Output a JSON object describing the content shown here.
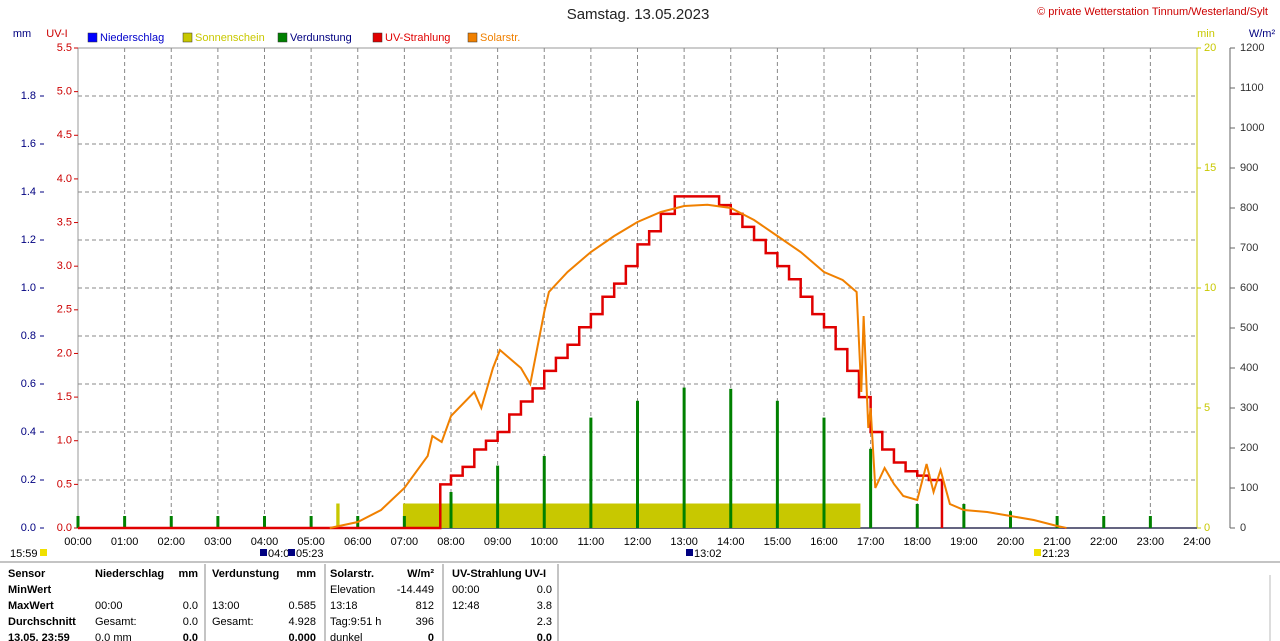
{
  "chart_data": {
    "type": "line",
    "title": "Samstag. 13.05.2023",
    "source": "© private Wetterstation Tinnum/Westerland/Sylt",
    "ylabel": "mm",
    "y2label": "UV-I",
    "y3label": "min",
    "y4label": "W/m²",
    "xlim": [
      0,
      24
    ],
    "xticks": [
      {
        "value": 0,
        "label": "00:00"
      },
      {
        "value": 1,
        "label": "01:00"
      },
      {
        "value": 2,
        "label": "02:00"
      },
      {
        "value": 3,
        "label": "03:00"
      },
      {
        "value": 4,
        "label": "04:00"
      },
      {
        "value": 5,
        "label": "05:00"
      },
      {
        "value": 6,
        "label": "06:00"
      },
      {
        "value": 7,
        "label": "07:00"
      },
      {
        "value": 8,
        "label": "08:00"
      },
      {
        "value": 9,
        "label": "09:00"
      },
      {
        "value": 10,
        "label": "10:00"
      },
      {
        "value": 11,
        "label": "11:00"
      },
      {
        "value": 12,
        "label": "12:00"
      },
      {
        "value": 13,
        "label": "13:00"
      },
      {
        "value": 14,
        "label": "14:00"
      },
      {
        "value": 15,
        "label": "15:00"
      },
      {
        "value": 16,
        "label": "16:00"
      },
      {
        "value": 17,
        "label": "17:00"
      },
      {
        "value": 18,
        "label": "18:00"
      },
      {
        "value": 19,
        "label": "19:00"
      },
      {
        "value": 20,
        "label": "20:00"
      },
      {
        "value": 21,
        "label": "21:00"
      },
      {
        "value": 22,
        "label": "22:00"
      },
      {
        "value": 23,
        "label": "23:00"
      },
      {
        "value": 24,
        "label": "24:00"
      }
    ],
    "ylim": [
      0,
      2
    ],
    "yticks": [
      {
        "value": 0,
        "label": "0.0"
      },
      0.2,
      0.4,
      0.6,
      0.8,
      {
        "value": 1,
        "label": "1.0"
      },
      1.2,
      1.4,
      1.6,
      1.8
    ],
    "y2lim": [
      0,
      5.5
    ],
    "y2ticks": [
      {
        "value": 0,
        "label": "0.0"
      },
      0.5,
      {
        "value": 1,
        "label": "1.0"
      },
      1.5,
      {
        "value": 2,
        "label": "2.0"
      },
      2.5,
      {
        "value": 3,
        "label": "3.0"
      },
      3.5,
      {
        "value": 4,
        "label": "4.0"
      },
      4.5,
      {
        "value": 5,
        "label": "5.0"
      },
      5.5
    ],
    "y3lim": [
      0,
      20
    ],
    "y3ticks": [
      0,
      5,
      10,
      15,
      20
    ],
    "y4lim": [
      0,
      1200
    ],
    "y4ticks": [
      0,
      100,
      200,
      300,
      400,
      500,
      600,
      700,
      800,
      900,
      1000,
      1100,
      1200
    ],
    "grid": true,
    "series": [
      {
        "name": "Niederschlag",
        "color": "#0000ff",
        "text_color": "#0000cc",
        "axis": "y",
        "style": "line",
        "x": [
          0,
          24
        ],
        "values": [
          0,
          0
        ]
      },
      {
        "name": "Sonnenschein",
        "color": "#c8c800",
        "text_color": "#c8c800",
        "axis": "y3",
        "style": "step-area",
        "x": [
          0,
          5.55,
          5.6,
          6.98,
          16.77
        ],
        "values": [
          0,
          1,
          0,
          1,
          0
        ]
      },
      {
        "name": "Verdunstung",
        "color": "#008000",
        "text_color": "#000080",
        "axis": "y",
        "style": "bars",
        "x": [
          0,
          1,
          2,
          3,
          4,
          5,
          6,
          7,
          8,
          9,
          10,
          11,
          12,
          13,
          14,
          15,
          16,
          17,
          18,
          19,
          20,
          21,
          22,
          23
        ],
        "values": [
          0.05,
          0.05,
          0.05,
          0.05,
          0.05,
          0.05,
          0.05,
          0.05,
          0.15,
          0.26,
          0.3,
          0.46,
          0.53,
          0.585,
          0.58,
          0.53,
          0.46,
          0.33,
          0.1,
          0.1,
          0.07,
          0.05,
          0.05,
          0.05
        ]
      },
      {
        "name": "UV-Strahlung",
        "color": "#e00000",
        "text_color": "#e00000",
        "axis": "y2",
        "style": "step",
        "x": [
          0,
          7.77,
          8,
          8.25,
          8.5,
          8.75,
          9,
          9.25,
          9.5,
          9.75,
          10,
          10.25,
          10.5,
          10.75,
          11,
          11.25,
          11.5,
          11.75,
          12,
          12.25,
          12.5,
          12.8,
          13,
          13.25,
          13.5,
          13.75,
          14,
          14.25,
          14.5,
          14.75,
          15,
          15.25,
          15.5,
          15.75,
          16,
          16.25,
          16.5,
          16.75,
          17,
          17.25,
          17.5,
          17.75,
          18,
          18.25,
          18.53
        ],
        "values": [
          0,
          0.5,
          0.6,
          0.7,
          0.9,
          1,
          1.1,
          1.3,
          1.45,
          1.6,
          1.8,
          1.95,
          2.1,
          2.3,
          2.45,
          2.65,
          2.8,
          3,
          3.25,
          3.4,
          3.6,
          3.8,
          3.8,
          3.8,
          3.8,
          3.7,
          3.6,
          3.45,
          3.3,
          3.15,
          3,
          2.85,
          2.65,
          2.45,
          2.3,
          2.05,
          1.8,
          1.5,
          1.1,
          0.9,
          0.75,
          0.65,
          0.6,
          0.55,
          0
        ]
      },
      {
        "name": "Solarstr.",
        "color": "#f08000",
        "text_color": "#f08000",
        "axis": "y4",
        "style": "line",
        "x": [
          5.4,
          6,
          6.5,
          7,
          7.5,
          7.6,
          7.8,
          8,
          8.5,
          8.65,
          8.9,
          9.05,
          9.5,
          9.7,
          10,
          10.1,
          10.5,
          11,
          11.5,
          12,
          12.5,
          13,
          13.5,
          14,
          14.5,
          15,
          15.5,
          16,
          16.4,
          16.6,
          16.7,
          16.8,
          16.85,
          16.95,
          17,
          17.1,
          17.3,
          17.5,
          17.7,
          18,
          18.2,
          18.35,
          18.5,
          18.7,
          19,
          19.5,
          20,
          20.5,
          21,
          21.2
        ],
        "values": [
          0,
          15,
          45,
          100,
          180,
          230,
          215,
          280,
          340,
          300,
          400,
          445,
          400,
          360,
          540,
          590,
          640,
          690,
          730,
          765,
          790,
          805,
          808,
          800,
          770,
          730,
          690,
          640,
          620,
          600,
          590,
          340,
          530,
          250,
          300,
          100,
          150,
          110,
          80,
          70,
          160,
          90,
          145,
          60,
          45,
          40,
          30,
          20,
          5,
          0
        ]
      }
    ],
    "markers": [
      "15:59",
      "04:0",
      "05:23",
      "13:02",
      "21:23"
    ]
  },
  "table": {
    "rows": [
      {
        "a": "Sensor",
        "b": "Niederschlag",
        "c": "mm",
        "d": "Verdunstung",
        "e": "mm",
        "f": "Solarstr.",
        "g": "W/m²",
        "h": "UV-Strahlung UV-I"
      },
      {
        "a": "MinWert",
        "f": "Elevation",
        "g": "-14.449",
        "h": "00:00",
        "i": "0.0"
      },
      {
        "a": "MaxWert",
        "b": "00:00",
        "c": "0.0",
        "d": "13:00",
        "e": "0.585",
        "f": "13:18",
        "g": "812",
        "h": "12:48",
        "i": "3.8"
      },
      {
        "a": "Durchschnitt",
        "b": "Gesamt:",
        "c": "0.0",
        "d": "Gesamt:",
        "e": "4.928",
        "f": "Tag:9:51 h",
        "g": "396",
        "i": "2.3"
      },
      {
        "a": "13.05. 23:59",
        "b": "0.0 mm",
        "c": "0.0",
        "e": "0.000",
        "f": "dunkel",
        "g": "0",
        "i": "0.0"
      }
    ]
  }
}
